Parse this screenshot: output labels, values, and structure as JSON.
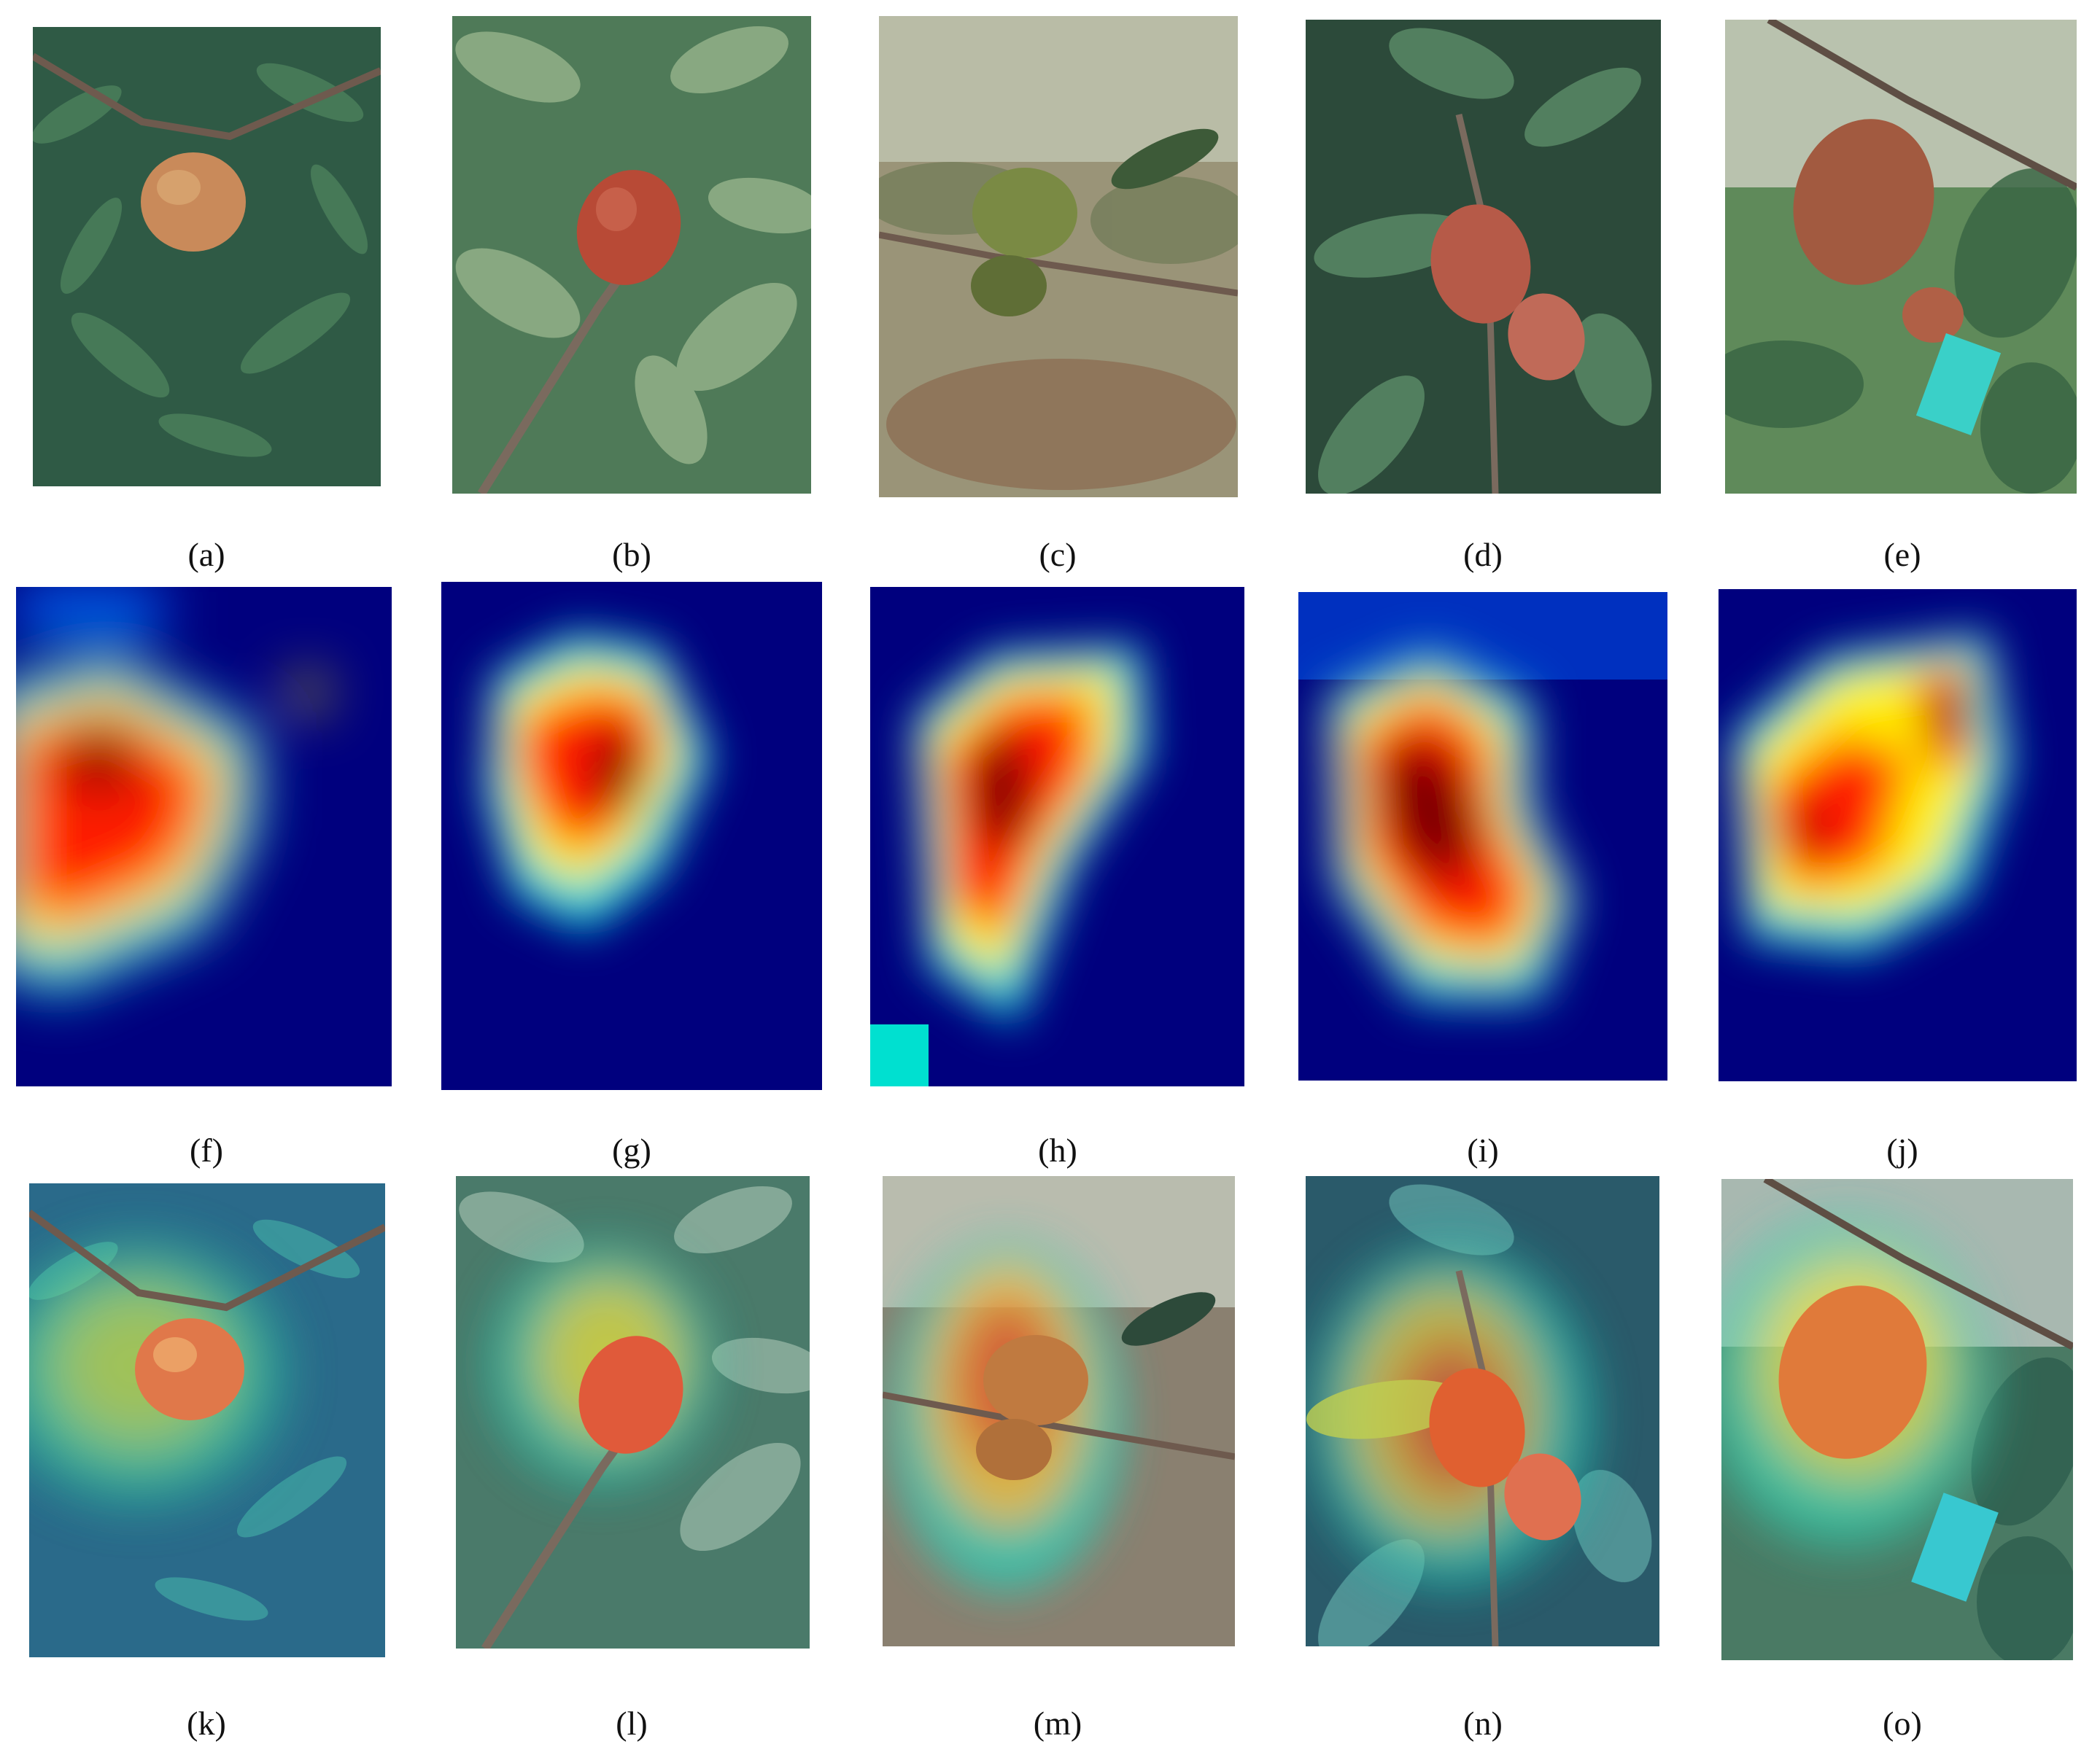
{
  "figure": {
    "row_photos": {
      "panels": [
        {
          "label": "(a)",
          "fruit_color": "#c98a5a"
        },
        {
          "label": "(b)",
          "fruit_color": "#b84a36"
        },
        {
          "label": "(c)",
          "fruit_color": "#7a8a44"
        },
        {
          "label": "(d)",
          "fruit_color": "#b65a48"
        },
        {
          "label": "(e)",
          "fruit_color": "#a25a40"
        }
      ]
    },
    "row_heatmaps": {
      "panels": [
        {
          "label": "(f)"
        },
        {
          "label": "(g)"
        },
        {
          "label": "(h)"
        },
        {
          "label": "(i)"
        },
        {
          "label": "(j)"
        }
      ]
    },
    "row_overlays": {
      "panels": [
        {
          "label": "(k)"
        },
        {
          "label": "(l)"
        },
        {
          "label": "(m)"
        },
        {
          "label": "(n)"
        },
        {
          "label": "(o)"
        }
      ]
    },
    "colors": {
      "heatmap_low": "#00007e",
      "heatmap_mid": "#00e0e0",
      "heatmap_high": "#ff1a00",
      "heatmap_peak": "#7a0000",
      "foliage": "#3f6b4a",
      "branch": "#6e5a4e"
    }
  }
}
